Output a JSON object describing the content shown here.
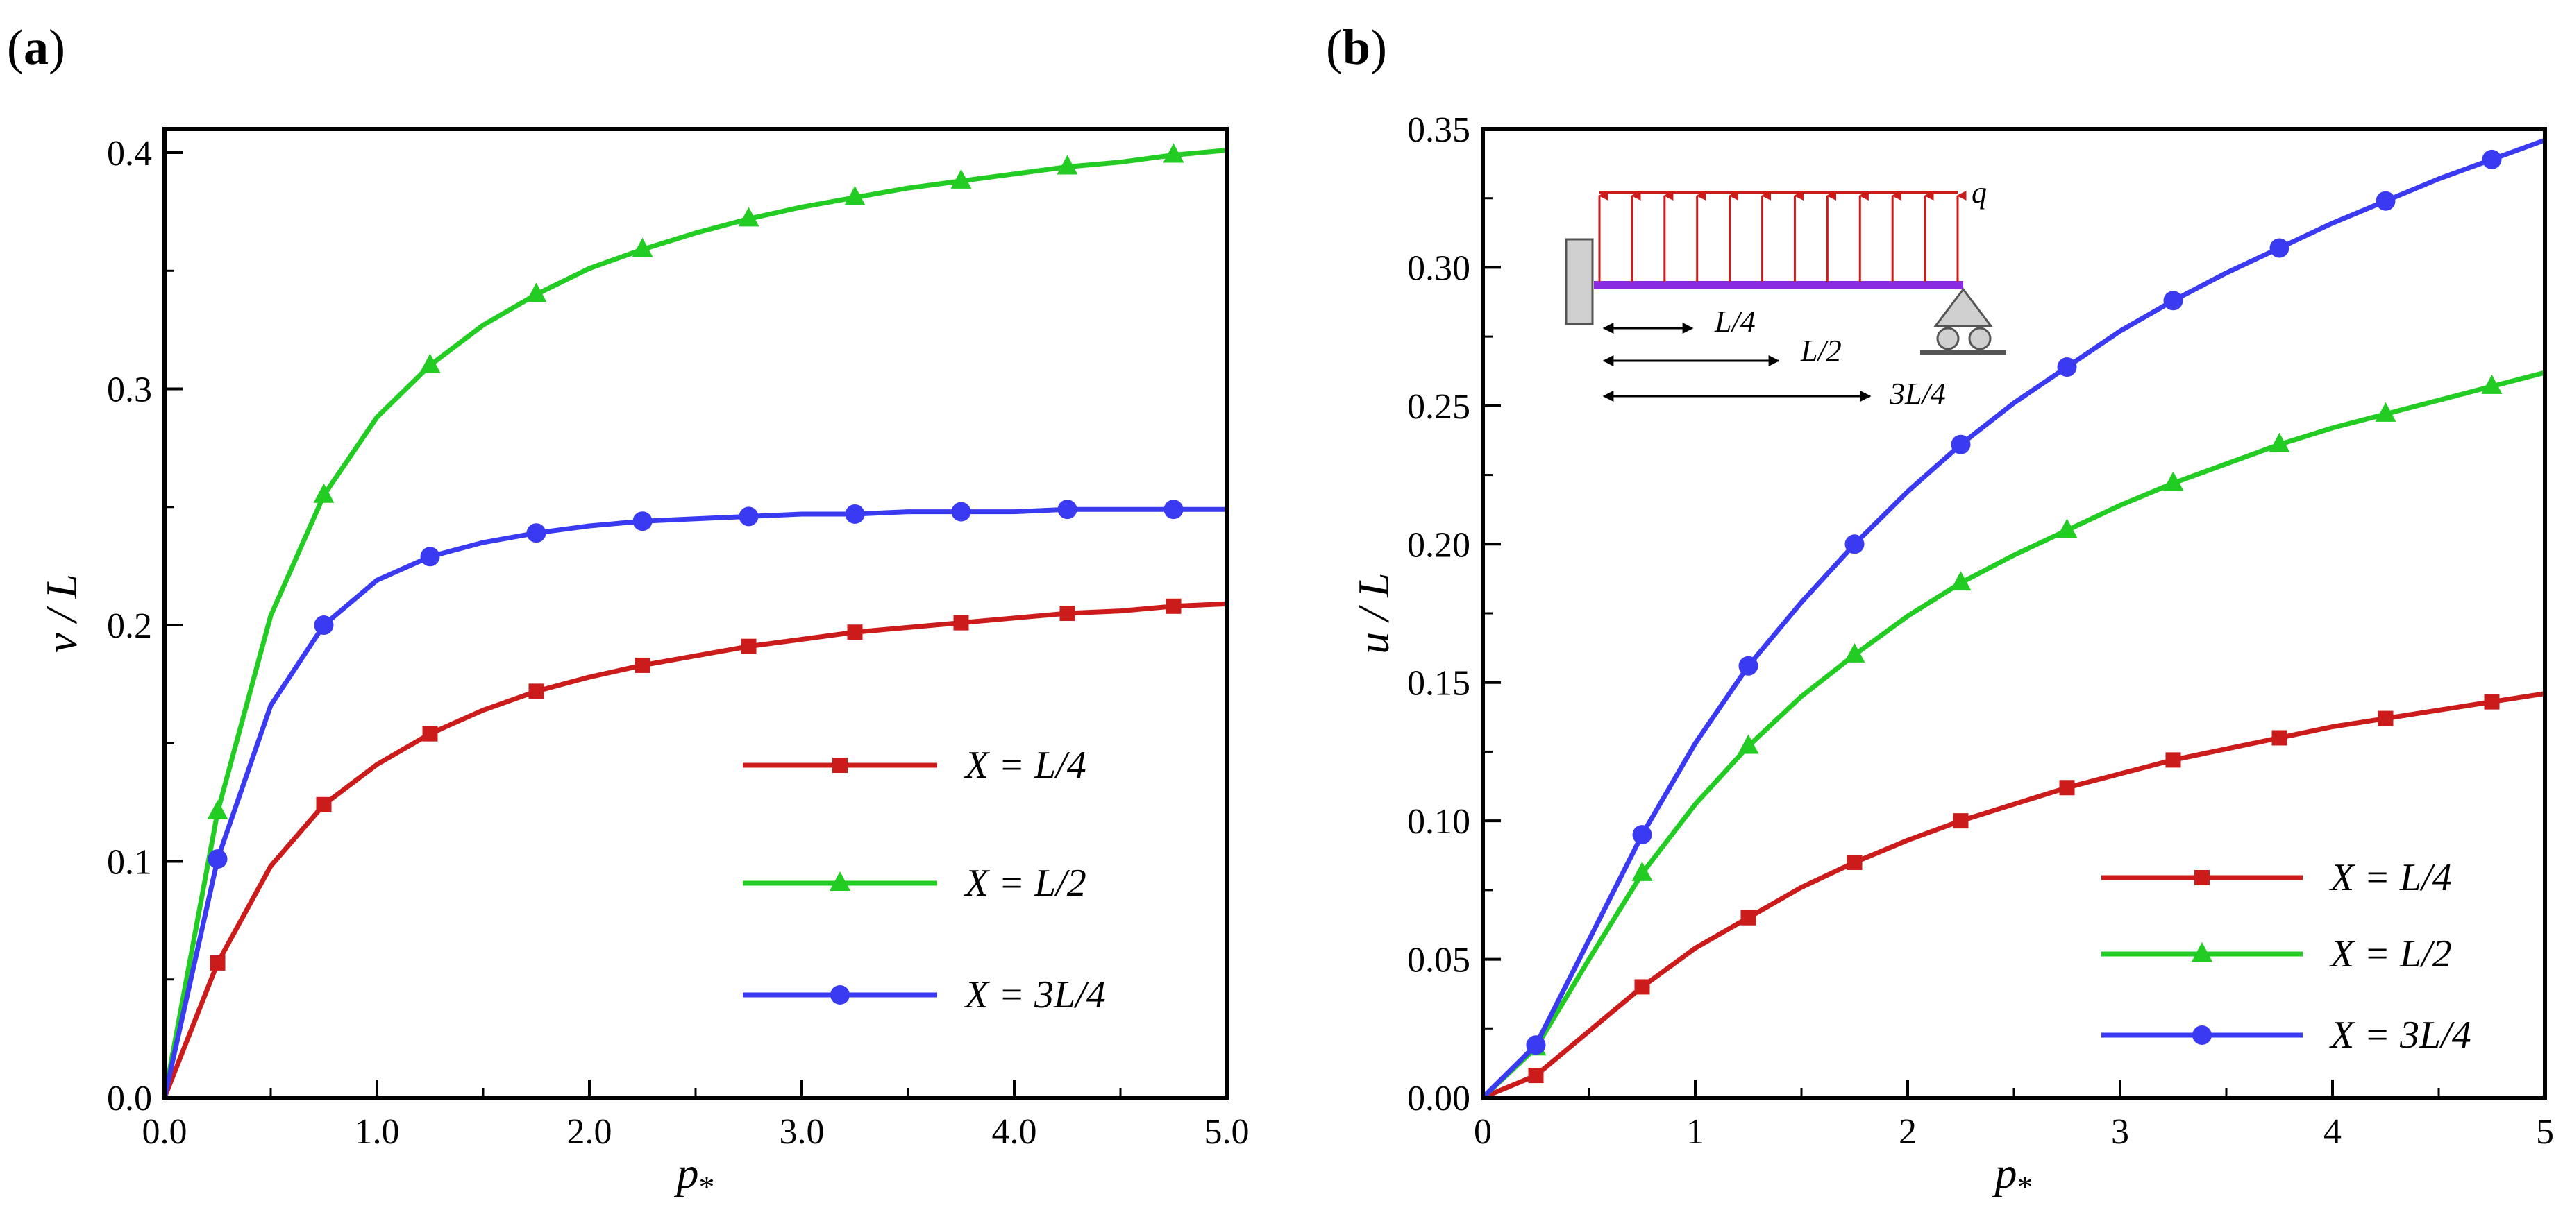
{
  "colors": {
    "red": "#cc1b1b",
    "green": "#22cc22",
    "blue": "#3a3af2",
    "beam": "#8a2be2",
    "load": "#cc1b1b",
    "support": "#d0d0d0"
  },
  "chart_data": [
    {
      "type": "line",
      "panel_label": "a",
      "xlabel_main": "p",
      "xlabel_sub": "*",
      "ylabel": "v / L",
      "xlim": [
        0,
        5
      ],
      "ylim": [
        0,
        0.41
      ],
      "xticks": [
        0,
        1,
        2,
        3,
        4,
        5
      ],
      "xtick_labels": [
        "0.0",
        "1.0",
        "2.0",
        "3.0",
        "4.0",
        "5.0"
      ],
      "yticks": [
        0,
        0.1,
        0.2,
        0.3,
        0.4
      ],
      "ytick_labels": [
        "0.0",
        "0.1",
        "0.2",
        "0.3",
        "0.4"
      ],
      "x": [
        0,
        0.25,
        0.5,
        0.75,
        1.0,
        1.25,
        1.5,
        1.75,
        2.0,
        2.25,
        2.5,
        2.75,
        3.0,
        3.25,
        3.5,
        3.75,
        4.0,
        4.25,
        4.5,
        4.75,
        5.0
      ],
      "marker_x": [
        0.25,
        0.75,
        1.25,
        1.75,
        2.25,
        2.75,
        3.25,
        3.75,
        4.25,
        4.75
      ],
      "series": [
        {
          "name": "X = L/4",
          "color_key": "red",
          "marker": "square",
          "values": [
            0,
            0.057,
            0.098,
            0.124,
            0.141,
            0.154,
            0.164,
            0.172,
            0.178,
            0.183,
            0.187,
            0.191,
            0.194,
            0.197,
            0.199,
            0.201,
            0.203,
            0.205,
            0.206,
            0.208,
            0.209
          ]
        },
        {
          "name": "X = L/2",
          "color_key": "green",
          "marker": "triangle",
          "values": [
            0,
            0.121,
            0.204,
            0.255,
            0.288,
            0.31,
            0.327,
            0.34,
            0.351,
            0.359,
            0.366,
            0.372,
            0.377,
            0.381,
            0.385,
            0.388,
            0.391,
            0.394,
            0.396,
            0.399,
            0.401
          ]
        },
        {
          "name": "X = 3L/4",
          "color_key": "blue",
          "marker": "circle",
          "values": [
            0,
            0.101,
            0.166,
            0.2,
            0.219,
            0.229,
            0.235,
            0.239,
            0.242,
            0.244,
            0.245,
            0.246,
            0.247,
            0.247,
            0.248,
            0.248,
            0.248,
            0.249,
            0.249,
            0.249,
            0.249
          ]
        }
      ],
      "legend_position": "lower-right"
    },
    {
      "type": "line",
      "panel_label": "b",
      "xlabel_main": "p",
      "xlabel_sub": "*",
      "ylabel": "u / L",
      "xlim": [
        0,
        5
      ],
      "ylim": [
        0,
        0.35
      ],
      "xticks": [
        0,
        1,
        2,
        3,
        4,
        5
      ],
      "xtick_labels": [
        "0",
        "1",
        "2",
        "3",
        "4",
        "5"
      ],
      "yticks": [
        0,
        0.05,
        0.1,
        0.15,
        0.2,
        0.25,
        0.3,
        0.35
      ],
      "ytick_labels": [
        "0.00",
        "0.05",
        "0.10",
        "0.15",
        "0.20",
        "0.25",
        "0.30",
        "0.35"
      ],
      "x": [
        0,
        0.25,
        0.5,
        0.75,
        1.0,
        1.25,
        1.5,
        1.75,
        2.0,
        2.25,
        2.5,
        2.75,
        3.0,
        3.25,
        3.5,
        3.75,
        4.0,
        4.25,
        4.5,
        4.75,
        5.0
      ],
      "marker_x": [
        0.25,
        0.75,
        1.25,
        1.75,
        2.25,
        2.75,
        3.25,
        3.75,
        4.25,
        4.75
      ],
      "series": [
        {
          "name": "X = L/4",
          "color_key": "red",
          "marker": "square",
          "values": [
            0,
            0.008,
            0.024,
            0.04,
            0.054,
            0.065,
            0.076,
            0.085,
            0.093,
            0.1,
            0.106,
            0.112,
            0.117,
            0.122,
            0.126,
            0.13,
            0.134,
            0.137,
            0.14,
            0.143,
            0.146
          ]
        },
        {
          "name": "X = L/2",
          "color_key": "green",
          "marker": "triangle",
          "values": [
            0,
            0.018,
            0.05,
            0.081,
            0.106,
            0.127,
            0.145,
            0.16,
            0.174,
            0.186,
            0.196,
            0.205,
            0.214,
            0.222,
            0.229,
            0.236,
            0.242,
            0.247,
            0.252,
            0.257,
            0.262
          ]
        },
        {
          "name": "X = 3L/4",
          "color_key": "blue",
          "marker": "circle",
          "values": [
            0,
            0.019,
            0.057,
            0.095,
            0.128,
            0.156,
            0.179,
            0.2,
            0.219,
            0.236,
            0.251,
            0.264,
            0.277,
            0.288,
            0.298,
            0.307,
            0.316,
            0.324,
            0.332,
            0.339,
            0.346
          ]
        }
      ],
      "legend_position": "lower-right",
      "inset": {
        "load_label": "q",
        "dim_labels": [
          "L/4",
          "L/2",
          "3L/4"
        ]
      }
    }
  ]
}
